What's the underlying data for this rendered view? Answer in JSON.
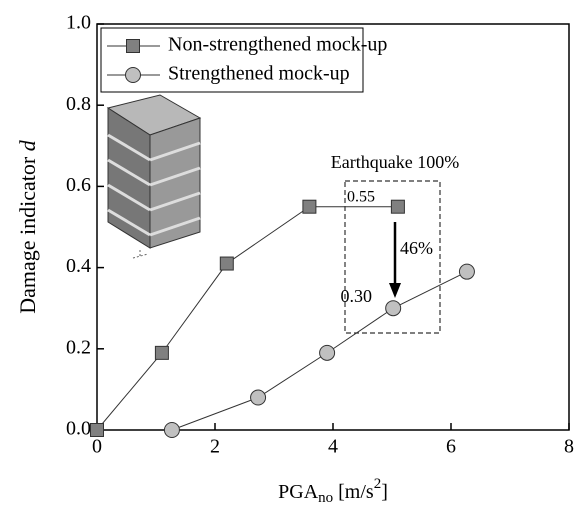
{
  "chart_data": {
    "type": "line",
    "x_label": {
      "text": "PGA",
      "sub": "no",
      "unit": "[m/s",
      "sup": "2",
      "end": "]"
    },
    "y_label": {
      "text": "Damage indicator",
      "symbol": "d"
    },
    "series": [
      {
        "name": "Non-strengthened mock-up",
        "color": "#808080",
        "marker": "square",
        "x": [
          0,
          1.1,
          2.2,
          3.6,
          5.1
        ],
        "values": [
          0,
          0.19,
          0.41,
          0.55,
          0.55
        ]
      },
      {
        "name": "Strengthened mock-up",
        "color": "#c0c0c0",
        "marker": "circle",
        "x": [
          1.27,
          2.73,
          3.9,
          5.02,
          6.27
        ],
        "values": [
          0,
          0.08,
          0.19,
          0.3,
          0.39
        ]
      }
    ],
    "annotations": [
      "Earthquake 100%",
      "0.55",
      "0.30",
      "46%"
    ],
    "xlim": [
      0,
      8
    ],
    "xticks": [
      0,
      2,
      4,
      6,
      8
    ],
    "ylim": [
      0,
      1
    ],
    "yticks": [
      {
        "value": 0,
        "label": "0.0"
      },
      0.2,
      0.4,
      0.6,
      0.8,
      {
        "value": 1,
        "label": "1.0"
      }
    ],
    "legend": "upper left"
  }
}
